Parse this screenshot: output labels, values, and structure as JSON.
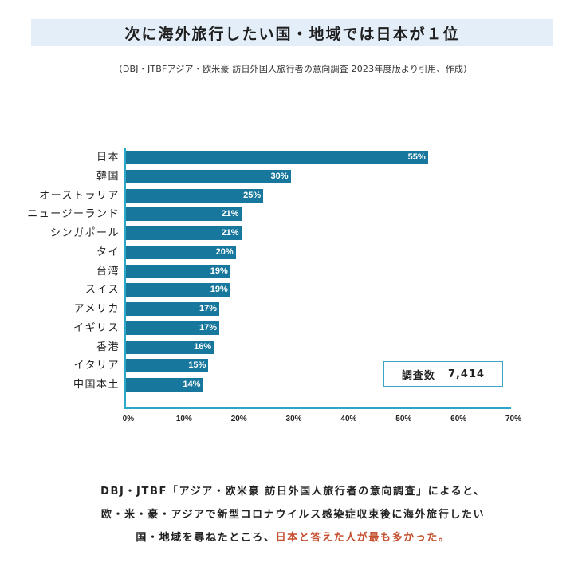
{
  "header": {
    "title": "次に海外旅行したい国・地域では日本が１位",
    "source": "（DBJ・JTBFアジア・欧米豪 訪日外国人旅行者の意向調査 2023年度版より引用、作成）"
  },
  "colors": {
    "bar": "#17779c",
    "axis": "#2aa6c8",
    "title_band": "#e3eef9",
    "highlight": "#c4502f"
  },
  "chart_data": {
    "type": "bar",
    "orientation": "horizontal",
    "title": "次に海外旅行したい国・地域では日本が１位",
    "xlabel": "",
    "ylabel": "",
    "xlim": [
      0,
      70
    ],
    "x_ticks": [
      "0%",
      "10%",
      "20%",
      "30%",
      "40%",
      "50%",
      "60%",
      "70%"
    ],
    "categories": [
      "日本",
      "韓国",
      "オーストラリア",
      "ニュージーランド",
      "シンガポール",
      "タイ",
      "台湾",
      "スイス",
      "アメリカ",
      "イギリス",
      "香港",
      "イタリア",
      "中国本土"
    ],
    "values": [
      55,
      30,
      25,
      21,
      21,
      20,
      19,
      19,
      17,
      17,
      16,
      15,
      14
    ],
    "value_labels": [
      "55%",
      "30%",
      "25%",
      "21%",
      "21%",
      "20%",
      "19%",
      "19%",
      "17%",
      "17%",
      "16%",
      "15%",
      "14%"
    ],
    "grid": false,
    "legend": null,
    "annotations": [
      {
        "label": "調査数",
        "value": "7,414"
      }
    ]
  },
  "sample": {
    "label": "調査数",
    "value": "7,414"
  },
  "description": {
    "line1": "DBJ・JTBF「アジア・欧米豪 訪日外国人旅行者の意向調査」によると、",
    "line2": "欧・米・豪・アジアで新型コロナウイルス感染症収束後に海外旅行したい",
    "line3_plain": "国・地域を尋ねたところ、",
    "line3_highlight": "日本と答えた人が最も多かった。"
  }
}
